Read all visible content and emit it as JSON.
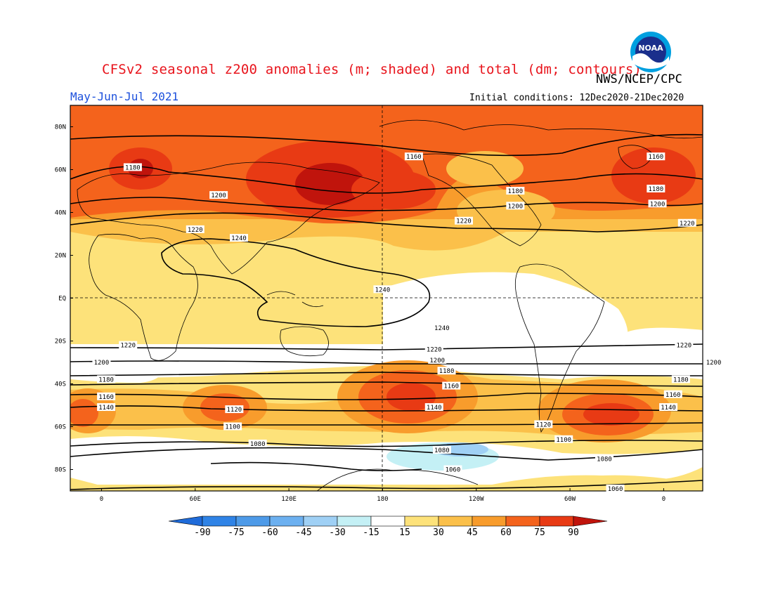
{
  "header": {
    "title": "CFSv2 seasonal z200 anomalies (m; shaded) and total (dm; contours)",
    "credit": "NWS/NCEP/CPC",
    "period": "May-Jun-Jul 2021",
    "initial_conditions": "Initial conditions: 12Dec2020-21Dec2020",
    "logo_text": "NOAA"
  },
  "axes": {
    "lat_ticks": [
      "80N",
      "60N",
      "40N",
      "20N",
      "EQ",
      "20S",
      "40S",
      "60S",
      "80S"
    ],
    "lon_ticks": [
      "0",
      "60E",
      "120E",
      "180",
      "120W",
      "60W",
      "0"
    ]
  },
  "colorbar": {
    "levels": [
      "-90",
      "-75",
      "-60",
      "-45",
      "-30",
      "-15",
      "15",
      "30",
      "45",
      "60",
      "75",
      "90"
    ],
    "colors": [
      "#1f6bd9",
      "#2f83e6",
      "#4d9ae8",
      "#6cb0f0",
      "#9fd0f5",
      "#c4f0f5",
      "#ffffff",
      "#fde27a",
      "#fbc04a",
      "#f89c2c",
      "#f4631c",
      "#e83a14",
      "#c0140c"
    ]
  },
  "contour_labels": [
    {
      "text": "1160",
      "lon": 200,
      "lat": 66
    },
    {
      "text": "1180",
      "lon": 20,
      "lat": 61
    },
    {
      "text": "1200",
      "lon": 75,
      "lat": 48
    },
    {
      "text": "1220",
      "lon": 60,
      "lat": 32
    },
    {
      "text": "1240",
      "lon": 88,
      "lat": 28
    },
    {
      "text": "1220",
      "lon": 232,
      "lat": 36
    },
    {
      "text": "1200",
      "lon": 265,
      "lat": 43
    },
    {
      "text": "1180",
      "lon": 265,
      "lat": 50
    },
    {
      "text": "1160",
      "lon": 355,
      "lat": 66
    },
    {
      "text": "1180",
      "lon": 355,
      "lat": 51
    },
    {
      "text": "1200",
      "lon": 356,
      "lat": 44
    },
    {
      "text": "1220",
      "lon": 375,
      "lat": 35
    },
    {
      "text": "1240",
      "lon": 180,
      "lat": 4
    },
    {
      "text": "1240",
      "lon": 218,
      "lat": -14
    },
    {
      "text": "1220",
      "lon": 17,
      "lat": -22
    },
    {
      "text": "1200",
      "lon": 0,
      "lat": -30
    },
    {
      "text": "1180",
      "lon": 3,
      "lat": -38
    },
    {
      "text": "1160",
      "lon": 3,
      "lat": -46
    },
    {
      "text": "1140",
      "lon": 3,
      "lat": -51
    },
    {
      "text": "1120",
      "lon": 85,
      "lat": -52
    },
    {
      "text": "1100",
      "lon": 84,
      "lat": -60
    },
    {
      "text": "1080",
      "lon": 100,
      "lat": -68
    },
    {
      "text": "1220",
      "lon": 213,
      "lat": -24
    },
    {
      "text": "1200",
      "lon": 215,
      "lat": -29
    },
    {
      "text": "1180",
      "lon": 221,
      "lat": -34
    },
    {
      "text": "1160",
      "lon": 224,
      "lat": -41
    },
    {
      "text": "1140",
      "lon": 213,
      "lat": -51
    },
    {
      "text": "1120",
      "lon": 283,
      "lat": -59
    },
    {
      "text": "1100",
      "lon": 296,
      "lat": -66
    },
    {
      "text": "1080",
      "lon": 218,
      "lat": -71
    },
    {
      "text": "1060",
      "lon": 225,
      "lat": -80
    },
    {
      "text": "1080",
      "lon": 322,
      "lat": -75
    },
    {
      "text": "1060",
      "lon": 329,
      "lat": -89
    },
    {
      "text": "1220",
      "lon": 373,
      "lat": -22
    },
    {
      "text": "1200",
      "lon": 392,
      "lat": -30
    },
    {
      "text": "1180",
      "lon": 371,
      "lat": -38
    },
    {
      "text": "1160",
      "lon": 366,
      "lat": -45
    },
    {
      "text": "1140",
      "lon": 363,
      "lat": -51
    }
  ]
}
